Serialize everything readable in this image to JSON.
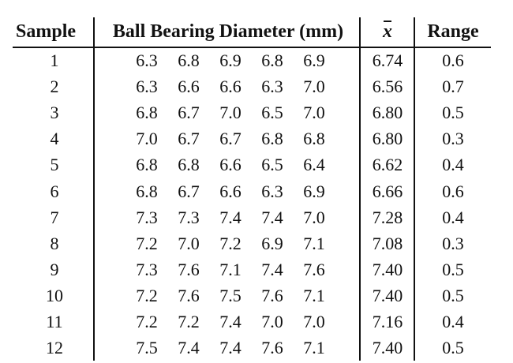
{
  "table": {
    "headers": {
      "sample": "Sample",
      "diameter": "Ball Bearing Diameter (mm)",
      "mean": "x",
      "range": "Range"
    },
    "rows": [
      {
        "sample": "1",
        "d": [
          "6.3",
          "6.8",
          "6.9",
          "6.8",
          "6.9"
        ],
        "mean": "6.74",
        "range": "0.6"
      },
      {
        "sample": "2",
        "d": [
          "6.3",
          "6.6",
          "6.6",
          "6.3",
          "7.0"
        ],
        "mean": "6.56",
        "range": "0.7"
      },
      {
        "sample": "3",
        "d": [
          "6.8",
          "6.7",
          "7.0",
          "6.5",
          "7.0"
        ],
        "mean": "6.80",
        "range": "0.5"
      },
      {
        "sample": "4",
        "d": [
          "7.0",
          "6.7",
          "6.7",
          "6.8",
          "6.8"
        ],
        "mean": "6.80",
        "range": "0.3"
      },
      {
        "sample": "5",
        "d": [
          "6.8",
          "6.8",
          "6.6",
          "6.5",
          "6.4"
        ],
        "mean": "6.62",
        "range": "0.4"
      },
      {
        "sample": "6",
        "d": [
          "6.8",
          "6.7",
          "6.6",
          "6.3",
          "6.9"
        ],
        "mean": "6.66",
        "range": "0.6"
      },
      {
        "sample": "7",
        "d": [
          "7.3",
          "7.3",
          "7.4",
          "7.4",
          "7.0"
        ],
        "mean": "7.28",
        "range": "0.4"
      },
      {
        "sample": "8",
        "d": [
          "7.2",
          "7.0",
          "7.2",
          "6.9",
          "7.1"
        ],
        "mean": "7.08",
        "range": "0.3"
      },
      {
        "sample": "9",
        "d": [
          "7.3",
          "7.6",
          "7.1",
          "7.4",
          "7.6"
        ],
        "mean": "7.40",
        "range": "0.5"
      },
      {
        "sample": "10",
        "d": [
          "7.2",
          "7.6",
          "7.5",
          "7.6",
          "7.1"
        ],
        "mean": "7.40",
        "range": "0.5"
      },
      {
        "sample": "11",
        "d": [
          "7.2",
          "7.2",
          "7.4",
          "7.0",
          "7.0"
        ],
        "mean": "7.16",
        "range": "0.4"
      },
      {
        "sample": "12",
        "d": [
          "7.5",
          "7.4",
          "7.4",
          "7.6",
          "7.1"
        ],
        "mean": "7.40",
        "range": "0.5"
      }
    ]
  }
}
